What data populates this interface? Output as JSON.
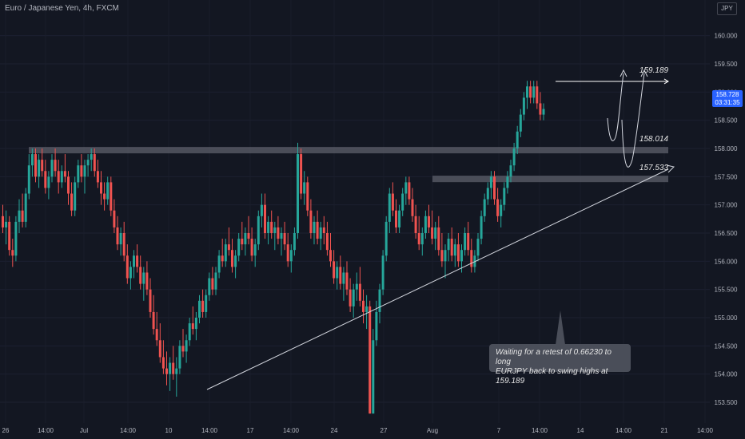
{
  "header": {
    "symbol_title": "Euro / Japanese Yen, 4h, FXCM",
    "currency": "JPY"
  },
  "price_badge": {
    "price": "158.728",
    "countdown": "03:31:35"
  },
  "annotation": {
    "line1": "Waiting for a retest of 0.66230 to long",
    "line2": "EURJPY back to swing highs at 159.189"
  },
  "colors": {
    "background": "#131722",
    "up_candle": "#26a69a",
    "down_candle": "#ef5350",
    "level_band": "#5d606b",
    "text": "#d1d4dc",
    "badge": "#2962ff"
  },
  "chart_data": {
    "type": "candlestick",
    "y_range": [
      153.25,
      160.25
    ],
    "y_ticks": [
      "160.000",
      "159.500",
      "159.000",
      "158.500",
      "158.000",
      "157.500",
      "157.000",
      "156.500",
      "156.000",
      "155.500",
      "155.000",
      "154.500",
      "154.000",
      "153.500"
    ],
    "x_ticks": [
      "26",
      "14:00",
      "Jul",
      "14:00",
      "10",
      "14:00",
      "17",
      "14:00",
      "24",
      "27",
      "Aug",
      "7",
      "14:00",
      "14",
      "14:00",
      "21",
      "14:00"
    ],
    "levels": [
      {
        "label": "159.189",
        "value": 159.189,
        "style": "line"
      },
      {
        "label": "158.014",
        "value": 157.97,
        "style": "band"
      },
      {
        "label": "157.533",
        "value": 157.46,
        "style": "band"
      }
    ],
    "trendline": {
      "from_bar": 61,
      "from_price": 153.4,
      "to_bar": 197,
      "to_price": 157.46
    },
    "projections": [
      {
        "start_bar": 176,
        "start_price": 158.55,
        "dip_price": 157.98,
        "end_bar": 180,
        "end_price": 159.15
      },
      {
        "start_bar": 181,
        "start_price": 158.55,
        "dip_price": 157.45,
        "end_bar": 188,
        "end_price": 159.15
      }
    ],
    "candles": [
      [
        156.8,
        157.0,
        156.5,
        156.6
      ],
      [
        156.6,
        156.9,
        156.3,
        156.7
      ],
      [
        156.7,
        156.8,
        156.1,
        156.2
      ],
      [
        156.2,
        156.4,
        155.9,
        156.1
      ],
      [
        156.1,
        156.8,
        156.0,
        156.7
      ],
      [
        156.7,
        157.1,
        156.5,
        156.9
      ],
      [
        156.9,
        157.2,
        156.6,
        156.7
      ],
      [
        156.7,
        157.3,
        156.6,
        157.2
      ],
      [
        157.2,
        157.9,
        157.1,
        157.7
      ],
      [
        157.7,
        158.0,
        157.5,
        157.9
      ],
      [
        157.9,
        158.0,
        157.4,
        157.5
      ],
      [
        157.5,
        157.9,
        157.3,
        157.8
      ],
      [
        157.8,
        158.0,
        157.5,
        157.6
      ],
      [
        157.6,
        157.8,
        157.2,
        157.3
      ],
      [
        157.3,
        157.6,
        157.1,
        157.5
      ],
      [
        157.5,
        157.9,
        157.4,
        157.8
      ],
      [
        157.8,
        158.0,
        157.5,
        157.6
      ],
      [
        157.6,
        157.8,
        157.2,
        157.4
      ],
      [
        157.4,
        157.7,
        157.3,
        157.6
      ],
      [
        157.6,
        157.9,
        157.4,
        157.5
      ],
      [
        157.5,
        157.6,
        157.0,
        157.2
      ],
      [
        157.2,
        157.4,
        156.8,
        156.9
      ],
      [
        156.9,
        157.5,
        156.8,
        157.4
      ],
      [
        157.4,
        157.8,
        157.3,
        157.7
      ],
      [
        157.7,
        157.9,
        157.4,
        157.5
      ],
      [
        157.5,
        157.8,
        157.2,
        157.7
      ],
      [
        157.7,
        157.9,
        157.5,
        157.8
      ],
      [
        157.8,
        158.0,
        157.6,
        157.9
      ],
      [
        157.9,
        158.0,
        157.5,
        157.6
      ],
      [
        157.6,
        157.8,
        157.3,
        157.4
      ],
      [
        157.4,
        157.6,
        157.0,
        157.2
      ],
      [
        157.2,
        157.4,
        156.9,
        157.1
      ],
      [
        157.1,
        157.5,
        157.0,
        157.4
      ],
      [
        157.4,
        157.5,
        156.8,
        156.9
      ],
      [
        156.9,
        157.1,
        156.5,
        156.6
      ],
      [
        156.6,
        156.8,
        156.2,
        156.3
      ],
      [
        156.3,
        156.6,
        156.1,
        156.5
      ],
      [
        156.5,
        156.7,
        156.0,
        156.1
      ],
      [
        156.1,
        156.3,
        155.6,
        155.7
      ],
      [
        155.7,
        156.0,
        155.5,
        155.9
      ],
      [
        155.9,
        156.2,
        155.7,
        156.1
      ],
      [
        156.1,
        156.3,
        155.8,
        155.9
      ],
      [
        155.9,
        156.1,
        155.5,
        155.6
      ],
      [
        155.6,
        155.9,
        155.3,
        155.8
      ],
      [
        155.8,
        156.0,
        155.4,
        155.5
      ],
      [
        155.5,
        155.7,
        155.0,
        155.1
      ],
      [
        155.1,
        155.4,
        154.7,
        154.8
      ],
      [
        154.8,
        155.1,
        154.5,
        154.6
      ],
      [
        154.6,
        154.9,
        154.2,
        154.3
      ],
      [
        154.3,
        154.6,
        154.0,
        154.1
      ],
      [
        154.1,
        154.4,
        153.8,
        154.0
      ],
      [
        154.0,
        154.3,
        153.7,
        154.2
      ],
      [
        154.2,
        154.5,
        153.9,
        154.0
      ],
      [
        154.0,
        154.3,
        153.6,
        154.1
      ],
      [
        154.1,
        154.6,
        154.0,
        154.5
      ],
      [
        154.5,
        154.8,
        154.3,
        154.4
      ],
      [
        154.4,
        154.7,
        154.2,
        154.6
      ],
      [
        154.6,
        155.0,
        154.5,
        154.9
      ],
      [
        154.9,
        155.2,
        154.7,
        154.8
      ],
      [
        154.8,
        155.1,
        154.6,
        155.0
      ],
      [
        155.0,
        155.4,
        154.9,
        155.3
      ],
      [
        155.3,
        155.5,
        155.0,
        155.1
      ],
      [
        155.1,
        155.5,
        155.0,
        155.4
      ],
      [
        155.4,
        155.8,
        155.3,
        155.7
      ],
      [
        155.7,
        155.9,
        155.4,
        155.5
      ],
      [
        155.5,
        155.9,
        155.4,
        155.8
      ],
      [
        155.8,
        156.2,
        155.7,
        156.1
      ],
      [
        156.1,
        156.4,
        155.9,
        156.0
      ],
      [
        156.0,
        156.4,
        155.9,
        156.3
      ],
      [
        156.3,
        156.6,
        156.1,
        156.2
      ],
      [
        156.2,
        156.4,
        155.8,
        155.9
      ],
      [
        155.9,
        156.2,
        155.7,
        156.1
      ],
      [
        156.1,
        156.5,
        156.0,
        156.4
      ],
      [
        156.4,
        156.7,
        156.2,
        156.3
      ],
      [
        156.3,
        156.6,
        156.1,
        156.5
      ],
      [
        156.5,
        156.8,
        156.3,
        156.4
      ],
      [
        156.4,
        156.6,
        156.0,
        156.1
      ],
      [
        156.1,
        156.4,
        155.9,
        156.3
      ],
      [
        156.3,
        156.9,
        156.2,
        156.8
      ],
      [
        156.8,
        157.2,
        156.6,
        157.0
      ],
      [
        157.0,
        157.2,
        156.4,
        156.5
      ],
      [
        156.5,
        156.8,
        156.3,
        156.7
      ],
      [
        156.7,
        156.9,
        156.4,
        156.5
      ],
      [
        156.5,
        156.7,
        156.2,
        156.6
      ],
      [
        156.6,
        156.8,
        156.3,
        156.4
      ],
      [
        156.4,
        156.6,
        156.1,
        156.5
      ],
      [
        156.5,
        156.7,
        156.2,
        156.3
      ],
      [
        156.3,
        156.5,
        155.9,
        156.0
      ],
      [
        156.0,
        156.3,
        155.8,
        156.2
      ],
      [
        156.2,
        156.6,
        156.1,
        156.5
      ],
      [
        156.5,
        158.1,
        156.4,
        157.9
      ],
      [
        157.9,
        158.0,
        157.1,
        157.2
      ],
      [
        157.2,
        157.6,
        157.0,
        157.4
      ],
      [
        157.4,
        157.5,
        156.8,
        156.9
      ],
      [
        156.9,
        157.1,
        156.4,
        156.5
      ],
      [
        156.5,
        156.8,
        156.3,
        156.7
      ],
      [
        156.7,
        156.9,
        156.3,
        156.4
      ],
      [
        156.4,
        156.7,
        156.2,
        156.6
      ],
      [
        156.6,
        156.8,
        156.3,
        156.5
      ],
      [
        156.5,
        156.7,
        156.1,
        156.2
      ],
      [
        156.2,
        156.5,
        155.9,
        156.0
      ],
      [
        156.0,
        156.2,
        155.6,
        155.7
      ],
      [
        155.7,
        156.0,
        155.5,
        155.9
      ],
      [
        155.9,
        156.1,
        155.5,
        155.6
      ],
      [
        155.6,
        155.9,
        155.3,
        155.8
      ],
      [
        155.8,
        156.0,
        155.4,
        155.5
      ],
      [
        155.5,
        155.7,
        155.1,
        155.2
      ],
      [
        155.2,
        155.6,
        155.0,
        155.5
      ],
      [
        155.5,
        155.8,
        155.3,
        155.6
      ],
      [
        155.6,
        155.9,
        155.2,
        155.3
      ],
      [
        155.3,
        155.5,
        154.9,
        155.1
      ],
      [
        155.1,
        155.4,
        154.8,
        155.2
      ],
      [
        155.2,
        155.3,
        153.3,
        153.3
      ],
      [
        153.3,
        154.8,
        153.3,
        154.6
      ],
      [
        154.6,
        155.3,
        154.5,
        155.1
      ],
      [
        155.1,
        155.6,
        154.9,
        155.5
      ],
      [
        155.5,
        156.2,
        155.4,
        156.1
      ],
      [
        156.1,
        156.8,
        156.0,
        156.7
      ],
      [
        156.7,
        157.3,
        156.5,
        157.2
      ],
      [
        157.2,
        157.4,
        156.8,
        156.9
      ],
      [
        156.9,
        157.1,
        156.5,
        156.6
      ],
      [
        156.6,
        157.0,
        156.5,
        156.9
      ],
      [
        156.9,
        157.3,
        156.8,
        157.2
      ],
      [
        157.2,
        157.5,
        157.0,
        157.4
      ],
      [
        157.4,
        157.5,
        157.0,
        157.1
      ],
      [
        157.1,
        157.3,
        156.7,
        156.8
      ],
      [
        156.8,
        157.0,
        156.4,
        156.5
      ],
      [
        156.5,
        156.8,
        156.2,
        156.3
      ],
      [
        156.3,
        156.6,
        156.1,
        156.5
      ],
      [
        156.5,
        156.9,
        156.4,
        156.8
      ],
      [
        156.8,
        157.0,
        156.5,
        156.6
      ],
      [
        156.6,
        156.9,
        156.3,
        156.4
      ],
      [
        156.4,
        156.7,
        156.2,
        156.6
      ],
      [
        156.6,
        156.8,
        156.1,
        156.2
      ],
      [
        156.2,
        156.5,
        155.9,
        156.0
      ],
      [
        156.0,
        156.3,
        155.7,
        156.2
      ],
      [
        156.2,
        156.5,
        156.0,
        156.4
      ],
      [
        156.4,
        156.6,
        156.0,
        156.1
      ],
      [
        156.1,
        156.4,
        155.9,
        156.3
      ],
      [
        156.3,
        156.5,
        155.9,
        156.0
      ],
      [
        156.0,
        156.3,
        155.8,
        156.2
      ],
      [
        156.2,
        156.6,
        156.1,
        156.5
      ],
      [
        156.5,
        156.7,
        156.1,
        156.2
      ],
      [
        156.2,
        156.4,
        155.8,
        155.9
      ],
      [
        155.9,
        156.2,
        155.8,
        156.1
      ],
      [
        156.1,
        156.5,
        156.0,
        156.4
      ],
      [
        156.4,
        156.9,
        156.3,
        156.8
      ],
      [
        156.8,
        157.2,
        156.7,
        157.1
      ],
      [
        157.1,
        157.4,
        157.0,
        157.3
      ],
      [
        157.3,
        157.6,
        157.1,
        157.5
      ],
      [
        157.5,
        157.6,
        157.0,
        157.1
      ],
      [
        157.1,
        157.3,
        156.7,
        156.8
      ],
      [
        156.8,
        157.1,
        156.6,
        157.0
      ],
      [
        157.0,
        157.4,
        156.9,
        157.3
      ],
      [
        157.3,
        157.6,
        157.2,
        157.5
      ],
      [
        157.5,
        157.8,
        157.4,
        157.7
      ],
      [
        157.7,
        158.1,
        157.6,
        158.0
      ],
      [
        158.0,
        158.4,
        157.9,
        158.3
      ],
      [
        158.3,
        158.7,
        158.2,
        158.6
      ],
      [
        158.6,
        159.0,
        158.5,
        158.9
      ],
      [
        158.9,
        159.2,
        158.7,
        159.1
      ],
      [
        159.1,
        159.2,
        158.8,
        158.9
      ],
      [
        158.9,
        159.2,
        158.8,
        159.1
      ],
      [
        159.1,
        159.2,
        158.7,
        158.8
      ],
      [
        158.8,
        159.0,
        158.5,
        158.6
      ],
      [
        158.6,
        158.8,
        158.5,
        158.7
      ]
    ],
    "candle_bar_offset": 0
  }
}
